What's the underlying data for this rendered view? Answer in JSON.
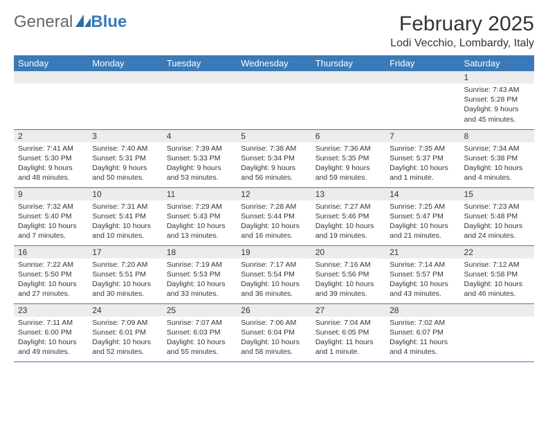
{
  "brand": {
    "part1": "General",
    "part2": "Blue"
  },
  "title": "February 2025",
  "location": "Lodi Vecchio, Lombardy, Italy",
  "colors": {
    "accent": "#3a7ab8",
    "dayband": "#ececec",
    "text": "#333333",
    "bg": "#ffffff"
  },
  "weekdays": [
    "Sunday",
    "Monday",
    "Tuesday",
    "Wednesday",
    "Thursday",
    "Friday",
    "Saturday"
  ],
  "weeks": [
    [
      {
        "n": "",
        "sr": "",
        "ss": "",
        "dl": ""
      },
      {
        "n": "",
        "sr": "",
        "ss": "",
        "dl": ""
      },
      {
        "n": "",
        "sr": "",
        "ss": "",
        "dl": ""
      },
      {
        "n": "",
        "sr": "",
        "ss": "",
        "dl": ""
      },
      {
        "n": "",
        "sr": "",
        "ss": "",
        "dl": ""
      },
      {
        "n": "",
        "sr": "",
        "ss": "",
        "dl": ""
      },
      {
        "n": "1",
        "sr": "Sunrise: 7:43 AM",
        "ss": "Sunset: 5:28 PM",
        "dl": "Daylight: 9 hours and 45 minutes."
      }
    ],
    [
      {
        "n": "2",
        "sr": "Sunrise: 7:41 AM",
        "ss": "Sunset: 5:30 PM",
        "dl": "Daylight: 9 hours and 48 minutes."
      },
      {
        "n": "3",
        "sr": "Sunrise: 7:40 AM",
        "ss": "Sunset: 5:31 PM",
        "dl": "Daylight: 9 hours and 50 minutes."
      },
      {
        "n": "4",
        "sr": "Sunrise: 7:39 AM",
        "ss": "Sunset: 5:33 PM",
        "dl": "Daylight: 9 hours and 53 minutes."
      },
      {
        "n": "5",
        "sr": "Sunrise: 7:38 AM",
        "ss": "Sunset: 5:34 PM",
        "dl": "Daylight: 9 hours and 56 minutes."
      },
      {
        "n": "6",
        "sr": "Sunrise: 7:36 AM",
        "ss": "Sunset: 5:35 PM",
        "dl": "Daylight: 9 hours and 59 minutes."
      },
      {
        "n": "7",
        "sr": "Sunrise: 7:35 AM",
        "ss": "Sunset: 5:37 PM",
        "dl": "Daylight: 10 hours and 1 minute."
      },
      {
        "n": "8",
        "sr": "Sunrise: 7:34 AM",
        "ss": "Sunset: 5:38 PM",
        "dl": "Daylight: 10 hours and 4 minutes."
      }
    ],
    [
      {
        "n": "9",
        "sr": "Sunrise: 7:32 AM",
        "ss": "Sunset: 5:40 PM",
        "dl": "Daylight: 10 hours and 7 minutes."
      },
      {
        "n": "10",
        "sr": "Sunrise: 7:31 AM",
        "ss": "Sunset: 5:41 PM",
        "dl": "Daylight: 10 hours and 10 minutes."
      },
      {
        "n": "11",
        "sr": "Sunrise: 7:29 AM",
        "ss": "Sunset: 5:43 PM",
        "dl": "Daylight: 10 hours and 13 minutes."
      },
      {
        "n": "12",
        "sr": "Sunrise: 7:28 AM",
        "ss": "Sunset: 5:44 PM",
        "dl": "Daylight: 10 hours and 16 minutes."
      },
      {
        "n": "13",
        "sr": "Sunrise: 7:27 AM",
        "ss": "Sunset: 5:46 PM",
        "dl": "Daylight: 10 hours and 19 minutes."
      },
      {
        "n": "14",
        "sr": "Sunrise: 7:25 AM",
        "ss": "Sunset: 5:47 PM",
        "dl": "Daylight: 10 hours and 21 minutes."
      },
      {
        "n": "15",
        "sr": "Sunrise: 7:23 AM",
        "ss": "Sunset: 5:48 PM",
        "dl": "Daylight: 10 hours and 24 minutes."
      }
    ],
    [
      {
        "n": "16",
        "sr": "Sunrise: 7:22 AM",
        "ss": "Sunset: 5:50 PM",
        "dl": "Daylight: 10 hours and 27 minutes."
      },
      {
        "n": "17",
        "sr": "Sunrise: 7:20 AM",
        "ss": "Sunset: 5:51 PM",
        "dl": "Daylight: 10 hours and 30 minutes."
      },
      {
        "n": "18",
        "sr": "Sunrise: 7:19 AM",
        "ss": "Sunset: 5:53 PM",
        "dl": "Daylight: 10 hours and 33 minutes."
      },
      {
        "n": "19",
        "sr": "Sunrise: 7:17 AM",
        "ss": "Sunset: 5:54 PM",
        "dl": "Daylight: 10 hours and 36 minutes."
      },
      {
        "n": "20",
        "sr": "Sunrise: 7:16 AM",
        "ss": "Sunset: 5:56 PM",
        "dl": "Daylight: 10 hours and 39 minutes."
      },
      {
        "n": "21",
        "sr": "Sunrise: 7:14 AM",
        "ss": "Sunset: 5:57 PM",
        "dl": "Daylight: 10 hours and 43 minutes."
      },
      {
        "n": "22",
        "sr": "Sunrise: 7:12 AM",
        "ss": "Sunset: 5:58 PM",
        "dl": "Daylight: 10 hours and 46 minutes."
      }
    ],
    [
      {
        "n": "23",
        "sr": "Sunrise: 7:11 AM",
        "ss": "Sunset: 6:00 PM",
        "dl": "Daylight: 10 hours and 49 minutes."
      },
      {
        "n": "24",
        "sr": "Sunrise: 7:09 AM",
        "ss": "Sunset: 6:01 PM",
        "dl": "Daylight: 10 hours and 52 minutes."
      },
      {
        "n": "25",
        "sr": "Sunrise: 7:07 AM",
        "ss": "Sunset: 6:03 PM",
        "dl": "Daylight: 10 hours and 55 minutes."
      },
      {
        "n": "26",
        "sr": "Sunrise: 7:06 AM",
        "ss": "Sunset: 6:04 PM",
        "dl": "Daylight: 10 hours and 58 minutes."
      },
      {
        "n": "27",
        "sr": "Sunrise: 7:04 AM",
        "ss": "Sunset: 6:05 PM",
        "dl": "Daylight: 11 hours and 1 minute."
      },
      {
        "n": "28",
        "sr": "Sunrise: 7:02 AM",
        "ss": "Sunset: 6:07 PM",
        "dl": "Daylight: 11 hours and 4 minutes."
      },
      {
        "n": "",
        "sr": "",
        "ss": "",
        "dl": ""
      }
    ]
  ]
}
